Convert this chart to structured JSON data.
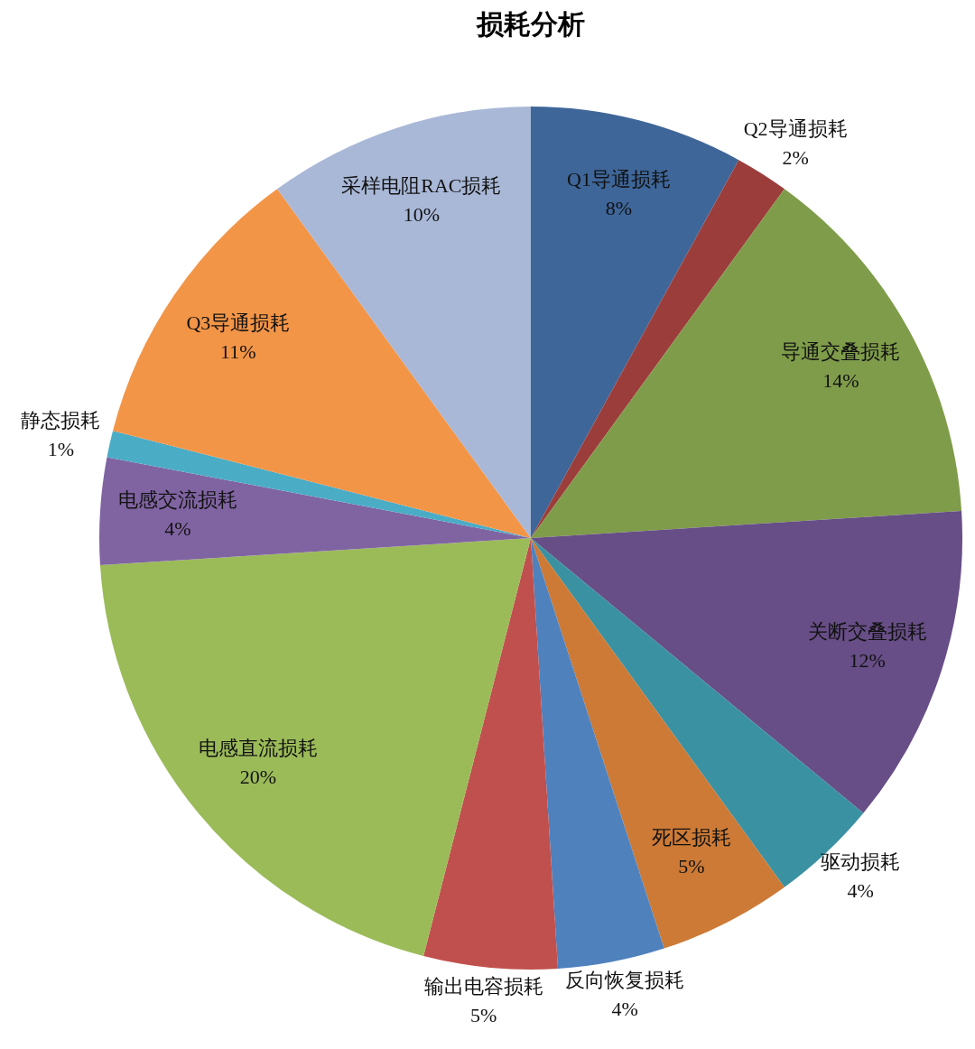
{
  "chart_data": {
    "type": "pie",
    "title": "损耗分析",
    "categories": [
      "Q1导通损耗",
      "Q2导通损耗",
      "导通交叠损耗",
      "关断交叠损耗",
      "驱动损耗",
      "死区损耗",
      "反向恢复损耗",
      "输出电容损耗",
      "电感直流损耗",
      "电感交流损耗",
      "静态损耗",
      "Q3导通损耗",
      "采样电阻RAC损耗"
    ],
    "values": [
      8,
      2,
      14,
      12,
      4,
      5,
      4,
      5,
      20,
      4,
      1,
      11,
      10
    ],
    "value_labels": [
      "8%",
      "2%",
      "14%",
      "12%",
      "4%",
      "5%",
      "4%",
      "5%",
      "20%",
      "4%",
      "1%",
      "11%",
      "10%"
    ],
    "colors": [
      "#3e6699",
      "#9b3e3b",
      "#7f9c4a",
      "#674e86",
      "#3a91a1",
      "#cc7a36",
      "#4f81bd",
      "#c0504d",
      "#9bbb59",
      "#8064a2",
      "#4bacc6",
      "#f39547",
      "#a9b8d7"
    ]
  }
}
